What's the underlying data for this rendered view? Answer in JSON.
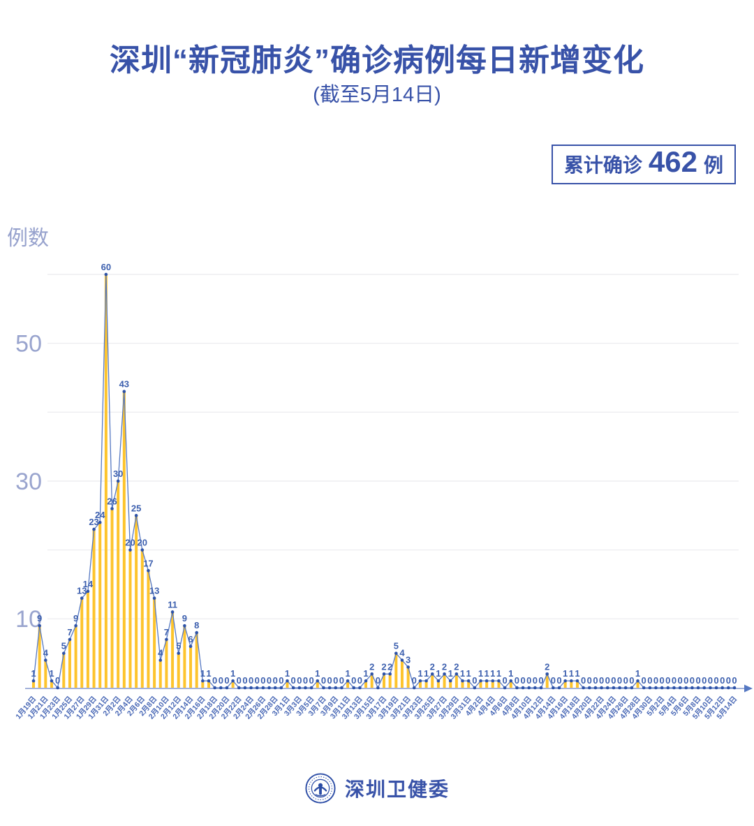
{
  "badge": {
    "prefix": "累计确诊",
    "count": "462",
    "suffix": "例"
  },
  "footer": {
    "org": "深圳卫健委"
  },
  "colors": {
    "blue_main": "#3852A8",
    "light_blue": "#97A2CD",
    "grid": "#EAEAEE",
    "axis": "#A4B2DA",
    "x_tick": "#4A69B6",
    "y_tick": "#99A4CE"
  },
  "chart_data": {
    "type": "bar-line",
    "title": "深圳“新冠肺炎”确诊病例每日新增变化",
    "subtitle": "(截至5月14日)",
    "ylabel": "例数",
    "ylim": [
      0,
      62
    ],
    "gridline_values": [
      10,
      20,
      30,
      40,
      50,
      60
    ],
    "y_ticks_labeled": [
      10,
      30,
      50
    ],
    "points_per_tick": 2,
    "x_tick_labels": [
      "1月19日",
      "1月21日",
      "1月23日",
      "1月25日",
      "1月27日",
      "1月29日",
      "1月31日",
      "2月2日",
      "2月4日",
      "2月6日",
      "2月8日",
      "2月10日",
      "2月12日",
      "2月14日",
      "2月16日",
      "2月18日",
      "2月20日",
      "2月22日",
      "2月24日",
      "2月26日",
      "2月28日",
      "3月1日",
      "3月3日",
      "3月5日",
      "3月7日",
      "3月9日",
      "3月11日",
      "3月13日",
      "3月15日",
      "3月17日",
      "3月19日",
      "3月21日",
      "3月23日",
      "3月25日",
      "3月27日",
      "3月29日",
      "3月31日",
      "4月2日",
      "4月4日",
      "4月6日",
      "4月8日",
      "4月10日",
      "4月12日",
      "4月14日",
      "4月16日",
      "4月18日",
      "4月20日",
      "4月22日",
      "4月24日",
      "4月26日",
      "4月28日",
      "4月30日",
      "5月2日",
      "5月4日",
      "5月6日",
      "5月8日",
      "5月10日",
      "5月12日",
      "5月14日"
    ],
    "values": [
      1,
      9,
      4,
      1,
      0,
      5,
      7,
      9,
      13,
      14,
      23,
      24,
      60,
      26,
      30,
      43,
      20,
      25,
      20,
      17,
      13,
      4,
      7,
      11,
      5,
      9,
      6,
      8,
      1,
      1,
      0,
      0,
      0,
      1,
      0,
      0,
      0,
      0,
      0,
      0,
      0,
      0,
      1,
      0,
      0,
      0,
      0,
      1,
      0,
      0,
      0,
      0,
      1,
      0,
      0,
      1,
      2,
      0,
      2,
      2,
      5,
      4,
      3,
      0,
      1,
      1,
      2,
      1,
      2,
      1,
      2,
      1,
      1,
      0,
      1,
      1,
      1,
      1,
      0,
      1,
      0,
      0,
      0,
      0,
      0,
      2,
      0,
      0,
      1,
      1,
      1,
      0,
      0,
      0,
      0,
      0,
      0,
      0,
      0,
      0,
      1,
      0,
      0,
      0,
      0,
      0,
      0,
      0,
      0,
      0,
      0,
      0,
      0,
      0,
      0,
      0,
      0
    ],
    "bar_color": "#FDC42D",
    "line_color": "#5578C2",
    "point_color": "#2D52A7",
    "value_label_color": "#3C5FAE",
    "legend_position": "none",
    "grid": true
  }
}
